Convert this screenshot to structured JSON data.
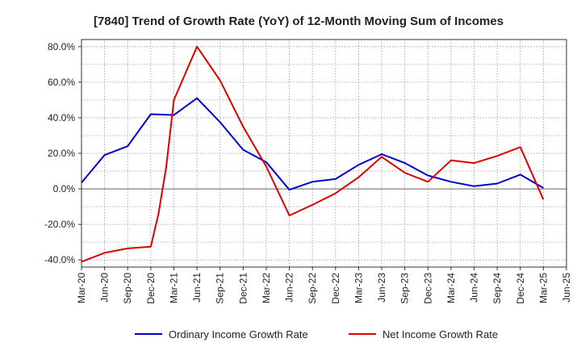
{
  "chart_data": {
    "type": "line",
    "title": "[7840]  Trend of Growth Rate (YoY) of 12-Month Moving Sum of Incomes",
    "xlabel": "",
    "ylabel": "",
    "x_tick_labels": [
      "Mar-20",
      "Jun-20",
      "Sep-20",
      "Dec-20",
      "Mar-21",
      "Jun-21",
      "Sep-21",
      "Dec-21",
      "Mar-22",
      "Jun-22",
      "Sep-22",
      "Dec-22",
      "Mar-23",
      "Jun-23",
      "Sep-23",
      "Dec-23",
      "Mar-24",
      "Jun-24",
      "Sep-24",
      "Dec-24",
      "Mar-25",
      "Jun-25"
    ],
    "y_tick_labels": [
      "80.0%",
      "60.0%",
      "40.0%",
      "20.0%",
      "0.0%",
      "-20.0%",
      "-40.0%"
    ],
    "y_ticks": [
      80,
      60,
      40,
      20,
      0,
      -20,
      -40
    ],
    "ylim": [
      -44,
      84
    ],
    "grid": true,
    "legend_position": "bottom",
    "series": [
      {
        "name": "Ordinary Income Growth Rate",
        "color": "#0000cc",
        "points": [
          [
            "Mar-20",
            3.5
          ],
          [
            "Jun-20",
            19.0
          ],
          [
            "Sep-20",
            24.0
          ],
          [
            "Dec-20",
            42.0
          ],
          [
            "Mar-21",
            41.5
          ],
          [
            "Jun-21",
            51.0
          ],
          [
            "Sep-21",
            37.5
          ],
          [
            "Dec-21",
            22.0
          ],
          [
            "Mar-22",
            15.0
          ],
          [
            "Jun-22",
            -0.5
          ],
          [
            "Sep-22",
            4.0
          ],
          [
            "Dec-22",
            5.5
          ],
          [
            "Mar-23",
            13.5
          ],
          [
            "Jun-23",
            19.5
          ],
          [
            "Sep-23",
            14.5
          ],
          [
            "Dec-23",
            7.5
          ],
          [
            "Mar-24",
            4.0
          ],
          [
            "Jun-24",
            1.5
          ],
          [
            "Sep-24",
            3.0
          ],
          [
            "Dec-24",
            8.0
          ],
          [
            "Mar-25",
            0.5
          ]
        ]
      },
      {
        "name": "Net Income Growth Rate",
        "color": "#dd0000",
        "points": [
          [
            "Mar-20",
            -41.0
          ],
          [
            "Jun-20",
            -36.0
          ],
          [
            "Sep-20",
            -33.5
          ],
          [
            "Dec-20",
            -32.5
          ],
          [
            "Jan-21",
            -14.0
          ],
          [
            "Feb-21",
            12.0
          ],
          [
            "Mar-21",
            50.0
          ],
          [
            "Jun-21",
            80.0
          ],
          [
            "Sep-21",
            61.0
          ],
          [
            "Dec-21",
            35.0
          ],
          [
            "Mar-22",
            12.5
          ],
          [
            "Jun-22",
            -15.0
          ],
          [
            "Sep-22",
            -9.0
          ],
          [
            "Dec-22",
            -2.5
          ],
          [
            "Mar-23",
            6.5
          ],
          [
            "Jun-23",
            18.0
          ],
          [
            "Sep-23",
            9.0
          ],
          [
            "Dec-23",
            4.0
          ],
          [
            "Mar-24",
            16.0
          ],
          [
            "Jun-24",
            14.5
          ],
          [
            "Sep-24",
            18.5
          ],
          [
            "Dec-24",
            23.5
          ],
          [
            "Mar-25",
            -6.0
          ]
        ]
      }
    ]
  }
}
